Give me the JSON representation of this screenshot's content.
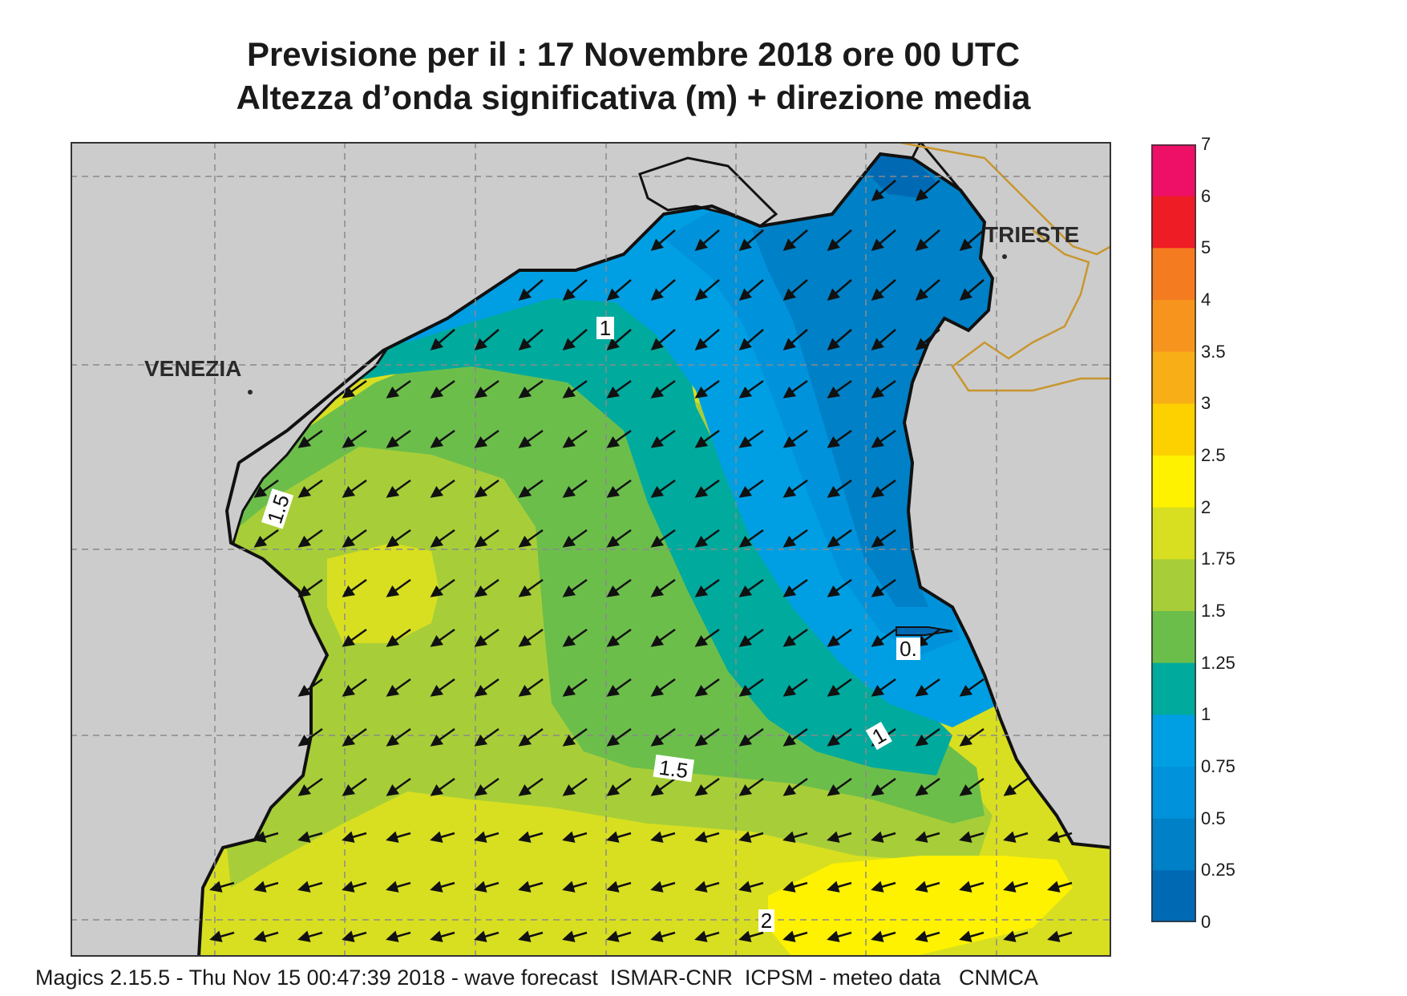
{
  "header": {
    "line1": "Previsione per il  :  17 Novembre  2018   ore 00 UTC",
    "line2": "Altezza d’onda significativa (m) + direzione media"
  },
  "map": {
    "cities": {
      "venezia": "VENEZIA",
      "trieste": "TRIESTE"
    },
    "contour_labels": {
      "a": "1",
      "b": "1.5",
      "c": "1.5",
      "d": "1",
      "e": "0.",
      "f": "2"
    },
    "land_color": "#cccccc",
    "border_color": "#c8962e"
  },
  "legend": {
    "ticks": [
      "7",
      "6",
      "5",
      "4",
      "3.5",
      "3",
      "2.5",
      "2",
      "1.75",
      "1.5",
      "1.25",
      "1",
      "0.75",
      "0.5",
      "0.25",
      "0"
    ],
    "bands": [
      {
        "range": "6-7",
        "color": "#ee0f66"
      },
      {
        "range": "5-6",
        "color": "#ee1c25"
      },
      {
        "range": "4-5",
        "color": "#f47b20"
      },
      {
        "range": "3.5-4",
        "color": "#f7941d"
      },
      {
        "range": "3-3.5",
        "color": "#f8ae17"
      },
      {
        "range": "2.5-3",
        "color": "#fdd000"
      },
      {
        "range": "2-2.5",
        "color": "#fff200"
      },
      {
        "range": "1.75-2",
        "color": "#d8df21"
      },
      {
        "range": "1.5-1.75",
        "color": "#a7ce38"
      },
      {
        "range": "1.25-1.5",
        "color": "#6cbe4b"
      },
      {
        "range": "1-1.25",
        "color": "#00aa9d"
      },
      {
        "range": "0.75-1",
        "color": "#009fe3"
      },
      {
        "range": "0.5-0.75",
        "color": "#0093db"
      },
      {
        "range": "0.25-0.5",
        "color": "#0080c6"
      },
      {
        "range": "0-0.25",
        "color": "#0069b4"
      }
    ]
  },
  "footer": "Magics 2.15.5 - Thu Nov 15 00:47:39 2018 - wave forecast  ISMAR-CNR  ICPSM - meteo data   CNMCA"
}
